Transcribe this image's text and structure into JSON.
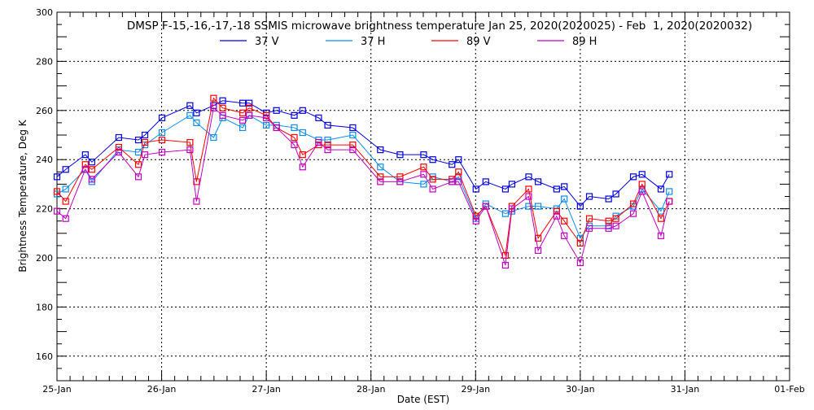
{
  "chart_data": {
    "type": "line",
    "title": "DMSP F-15,-16,-17,-18 SSMIS microwave brightness temperature Jan 25, 2020(2020025) - Feb  1, 2020(2020032)",
    "xlabel": "Date (EST)",
    "ylabel": "Brightness Temperature, Deg K",
    "ylim": [
      150,
      300
    ],
    "yticks": [
      160,
      180,
      200,
      220,
      240,
      260,
      280,
      300
    ],
    "xlim": [
      "2020-01-25 00:00",
      "2020-02-01 00:00"
    ],
    "xticks": [
      {
        "date": "2020-01-25 00:00",
        "label": "25-Jan"
      },
      {
        "date": "2020-01-26 00:00",
        "label": "26-Jan"
      },
      {
        "date": "2020-01-27 00:00",
        "label": "27-Jan"
      },
      {
        "date": "2020-01-28 00:00",
        "label": "28-Jan"
      },
      {
        "date": "2020-01-29 00:00",
        "label": "29-Jan"
      },
      {
        "date": "2020-01-30 00:00",
        "label": "30-Jan"
      },
      {
        "date": "2020-01-31 00:00",
        "label": "31-Jan"
      },
      {
        "date": "2020-02-01 00:00",
        "label": "01-Feb"
      }
    ],
    "grid": true,
    "legend_placement": "top-center",
    "marker": "square",
    "x": [
      "2020-01-25 00:00",
      "2020-01-25 02:00",
      "2020-01-25 06:30",
      "2020-01-25 08:00",
      "2020-01-25 14:10",
      "2020-01-25 18:40",
      "2020-01-25 20:10",
      "2020-01-26 00:05",
      "2020-01-26 06:30",
      "2020-01-26 08:00",
      "2020-01-26 11:55",
      "2020-01-26 14:00",
      "2020-01-26 18:35",
      "2020-01-26 20:05",
      "2020-01-27 00:00",
      "2020-01-27 02:20",
      "2020-01-27 06:25",
      "2020-01-27 08:20",
      "2020-01-27 12:00",
      "2020-01-27 14:05",
      "2020-01-27 19:50",
      "2020-01-28 02:10",
      "2020-01-28 06:40",
      "2020-01-28 12:05",
      "2020-01-28 14:10",
      "2020-01-28 18:35",
      "2020-01-28 20:05",
      "2020-01-29 00:05",
      "2020-01-29 02:20",
      "2020-01-29 06:50",
      "2020-01-29 08:20",
      "2020-01-29 12:10",
      "2020-01-29 14:20",
      "2020-01-29 18:35",
      "2020-01-29 20:20",
      "2020-01-30 00:00",
      "2020-01-30 02:05",
      "2020-01-30 06:30",
      "2020-01-30 08:10",
      "2020-01-30 12:10",
      "2020-01-30 14:10",
      "2020-01-30 18:30",
      "2020-01-30 20:25"
    ],
    "series": [
      {
        "name": "37 V",
        "color": "#0000e0",
        "values": [
          233,
          236,
          242,
          239,
          249,
          248,
          250,
          257,
          262,
          259,
          262,
          264,
          263,
          263,
          259,
          260,
          258,
          260,
          257,
          254,
          253,
          244,
          242,
          242,
          240,
          238,
          240,
          228,
          231,
          228,
          230,
          233,
          231,
          228,
          229,
          221,
          225,
          224,
          226,
          233,
          234,
          228,
          234
        ]
      },
      {
        "name": "37 H",
        "color": "#0a8cf0",
        "values": [
          226,
          228,
          236,
          231,
          244,
          243,
          246,
          251,
          258,
          255,
          249,
          257,
          253,
          258,
          254,
          254,
          253,
          251,
          248,
          248,
          250,
          237,
          231,
          230,
          233,
          231,
          233,
          216,
          222,
          218,
          219,
          221,
          221,
          220,
          224,
          208,
          213,
          213,
          217,
          221,
          228,
          219,
          227
        ]
      },
      {
        "name": "89 V",
        "color": "#ff0000",
        "values": [
          227,
          223,
          238,
          236,
          245,
          238,
          247,
          248,
          247,
          231,
          265,
          261,
          259,
          261,
          258,
          253,
          249,
          242,
          246,
          246,
          246,
          233,
          233,
          237,
          232,
          232,
          235,
          217,
          221,
          201,
          221,
          228,
          208,
          219,
          215,
          206,
          216,
          215,
          216,
          222,
          230,
          216,
          223
        ]
      },
      {
        "name": "89 H",
        "color": "#c000c0",
        "values": [
          219,
          216,
          236,
          232,
          243,
          233,
          242,
          243,
          244,
          223,
          261,
          258,
          256,
          258,
          257,
          253,
          246,
          237,
          247,
          244,
          244,
          231,
          231,
          234,
          228,
          231,
          231,
          215,
          221,
          197,
          220,
          225,
          203,
          217,
          209,
          198,
          212,
          212,
          213,
          218,
          227,
          209,
          223
        ]
      }
    ]
  }
}
